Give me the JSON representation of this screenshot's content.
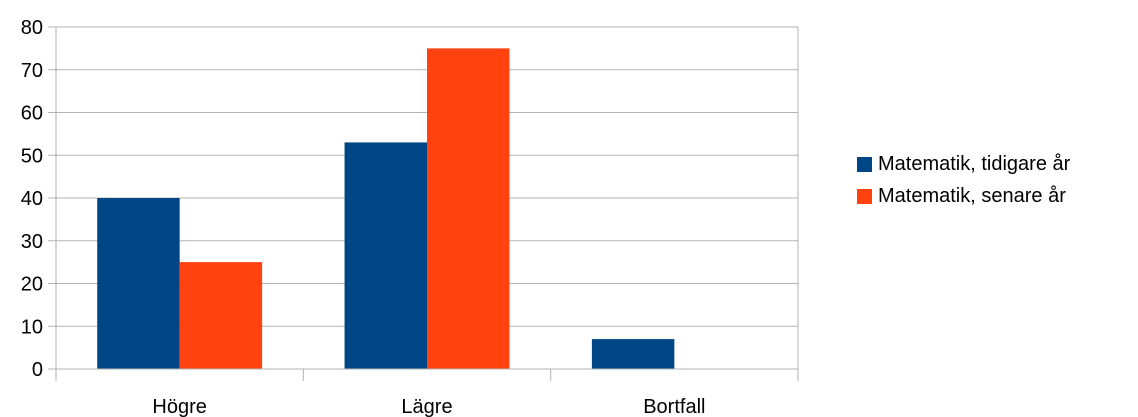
{
  "chart_data": {
    "type": "bar",
    "categories": [
      "Högre",
      "Lägre",
      "Bortfall"
    ],
    "series": [
      {
        "name": "Matematik, tidigare år",
        "color": "#004586",
        "values": [
          40,
          53,
          7
        ]
      },
      {
        "name": "Matematik, senare år",
        "color": "#ff420e",
        "values": [
          25,
          75,
          0
        ]
      }
    ],
    "yticks": [
      "0",
      "10",
      "20",
      "30",
      "40",
      "50",
      "60",
      "70",
      "80"
    ],
    "ylim": [
      0,
      80
    ],
    "grid": true,
    "legend_position": "right"
  }
}
